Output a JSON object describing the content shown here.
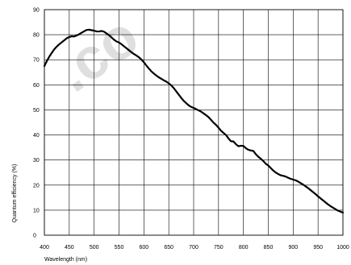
{
  "watermark": ".co",
  "chart_data": {
    "type": "line",
    "title": "",
    "xlabel": "Wavelength (nm)",
    "ylabel": "Quantum efficiency (%)",
    "xlim": [
      400,
      1000
    ],
    "ylim": [
      0,
      90
    ],
    "xticks": [
      400,
      450,
      500,
      550,
      600,
      650,
      700,
      750,
      800,
      850,
      900,
      950,
      1000
    ],
    "yticks": [
      0,
      10,
      20,
      30,
      40,
      50,
      60,
      70,
      80,
      90
    ],
    "grid": true,
    "series": [
      {
        "name": "",
        "x": [
          400,
          405,
          410,
          415,
          420,
          425,
          430,
          435,
          440,
          445,
          450,
          455,
          460,
          465,
          470,
          475,
          480,
          485,
          490,
          495,
          500,
          505,
          510,
          515,
          520,
          525,
          530,
          535,
          540,
          545,
          550,
          555,
          560,
          565,
          570,
          575,
          580,
          585,
          590,
          595,
          600,
          605,
          610,
          615,
          620,
          625,
          630,
          635,
          640,
          645,
          650,
          655,
          660,
          665,
          670,
          675,
          680,
          685,
          690,
          695,
          700,
          705,
          710,
          715,
          720,
          725,
          730,
          735,
          740,
          745,
          750,
          755,
          760,
          765,
          770,
          775,
          780,
          785,
          790,
          795,
          800,
          805,
          810,
          815,
          820,
          825,
          830,
          835,
          840,
          845,
          850,
          855,
          860,
          865,
          870,
          875,
          880,
          885,
          890,
          895,
          900,
          905,
          910,
          915,
          920,
          925,
          930,
          935,
          940,
          945,
          950,
          955,
          960,
          965,
          970,
          975,
          980,
          985,
          990,
          995,
          1000
        ],
        "y": [
          67.5,
          69.5,
          71.3,
          72.8,
          74.2,
          75.3,
          76.2,
          77.0,
          77.8,
          78.6,
          79.1,
          79.4,
          79.3,
          79.7,
          80.2,
          80.8,
          81.4,
          81.9,
          82.0,
          81.8,
          81.6,
          81.3,
          81.3,
          81.5,
          81.2,
          80.5,
          79.8,
          78.9,
          78.0,
          77.3,
          76.9,
          76.2,
          75.4,
          74.6,
          73.8,
          73.0,
          72.3,
          71.7,
          71.0,
          70.1,
          69.0,
          67.7,
          66.5,
          65.4,
          64.5,
          63.7,
          63.0,
          62.4,
          61.8,
          61.3,
          60.6,
          59.8,
          58.7,
          57.4,
          56.1,
          54.8,
          53.6,
          52.7,
          51.8,
          51.2,
          50.8,
          50.3,
          49.8,
          49.3,
          48.6,
          47.9,
          47.1,
          46.0,
          44.9,
          44.0,
          42.9,
          41.7,
          40.8,
          40.0,
          38.6,
          37.5,
          37.4,
          36.3,
          35.5,
          35.7,
          35.6,
          34.7,
          34.1,
          33.8,
          33.6,
          32.3,
          31.3,
          30.5,
          29.6,
          28.5,
          27.8,
          26.8,
          25.8,
          25.0,
          24.4,
          23.9,
          23.7,
          23.4,
          22.9,
          22.5,
          22.2,
          21.9,
          21.4,
          20.8,
          20.2,
          19.5,
          18.8,
          18.0,
          17.2,
          16.4,
          15.5,
          14.7,
          13.9,
          13.1,
          12.3,
          11.6,
          11.0,
          10.4,
          9.8,
          9.4,
          9.0
        ]
      }
    ]
  }
}
